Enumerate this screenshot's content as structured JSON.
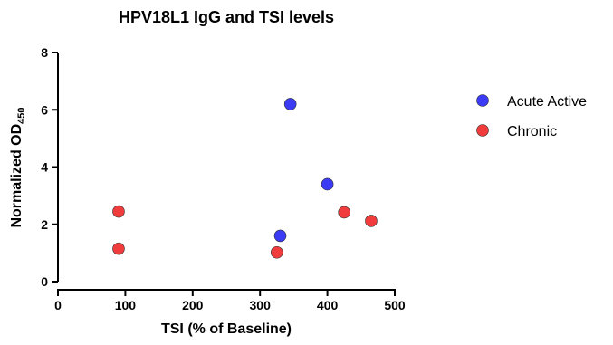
{
  "chart_data": {
    "type": "scatter",
    "title": "HPV18L1 IgG and TSI levels",
    "xlabel": "TSI (% of Baseline)",
    "ylabel_main": "Normalized OD",
    "ylabel_sub": "450",
    "xlim": [
      0,
      500
    ],
    "ylim": [
      0,
      8
    ],
    "x_ticks": [
      "0",
      "100",
      "200",
      "300",
      "400",
      "500"
    ],
    "y_ticks": [
      "0",
      "2",
      "4",
      "6",
      "8"
    ],
    "grid": false,
    "legend_position": "right",
    "series": [
      {
        "name": "Acute Active",
        "color": "#3b3bf5",
        "points": [
          {
            "x": 345,
            "y": 6.2
          },
          {
            "x": 400,
            "y": 3.4
          },
          {
            "x": 330,
            "y": 1.6
          }
        ]
      },
      {
        "name": "Chronic",
        "color": "#f03c3c",
        "points": [
          {
            "x": 90,
            "y": 2.45
          },
          {
            "x": 90,
            "y": 1.15
          },
          {
            "x": 325,
            "y": 1.02
          },
          {
            "x": 425,
            "y": 2.42
          },
          {
            "x": 465,
            "y": 2.12
          }
        ]
      }
    ]
  }
}
